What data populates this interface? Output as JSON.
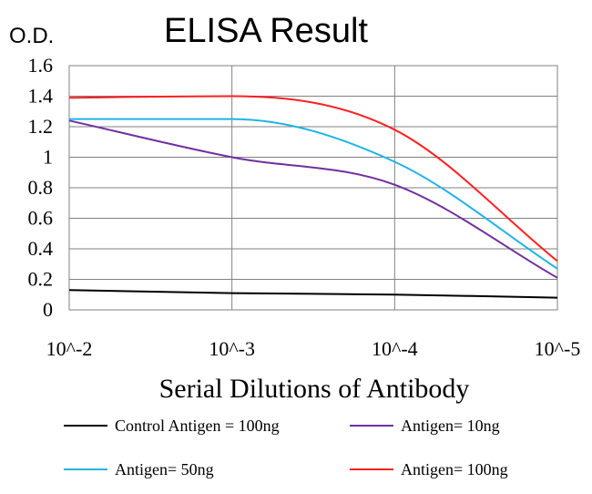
{
  "chart_data": {
    "type": "line",
    "title": "ELISA Result",
    "ylabel": "O.D.",
    "xlabel": "Serial Dilutions of Antibody",
    "x_tick_labels": [
      "10^-2",
      "10^-3",
      "10^-4",
      "10^-5"
    ],
    "x": [
      0.01,
      0.001,
      0.0001,
      1e-05
    ],
    "x_scale": "log",
    "ylim": [
      0,
      1.6
    ],
    "y_ticks": [
      0,
      0.2,
      0.4,
      0.6,
      0.8,
      1,
      1.2,
      1.4,
      1.6
    ],
    "y_tick_labels": [
      "0",
      "0.2",
      "0.4",
      "0.6",
      "0.8",
      "1",
      "1.2",
      "1.4",
      "1.6"
    ],
    "grid": true,
    "legend_position": "bottom",
    "series": [
      {
        "name": "Control Antigen = 100ng",
        "color": "#000000",
        "values": [
          0.13,
          0.11,
          0.1,
          0.08
        ]
      },
      {
        "name": "Antigen= 10ng",
        "color": "#7030a0",
        "values": [
          1.24,
          1.0,
          0.82,
          0.21
        ]
      },
      {
        "name": "Antigen= 50ng",
        "color": "#1fb4e6",
        "values": [
          1.25,
          1.25,
          0.97,
          0.27
        ]
      },
      {
        "name": "Antigen= 100ng",
        "color": "#ff2020",
        "values": [
          1.39,
          1.4,
          1.18,
          0.32
        ]
      }
    ]
  }
}
